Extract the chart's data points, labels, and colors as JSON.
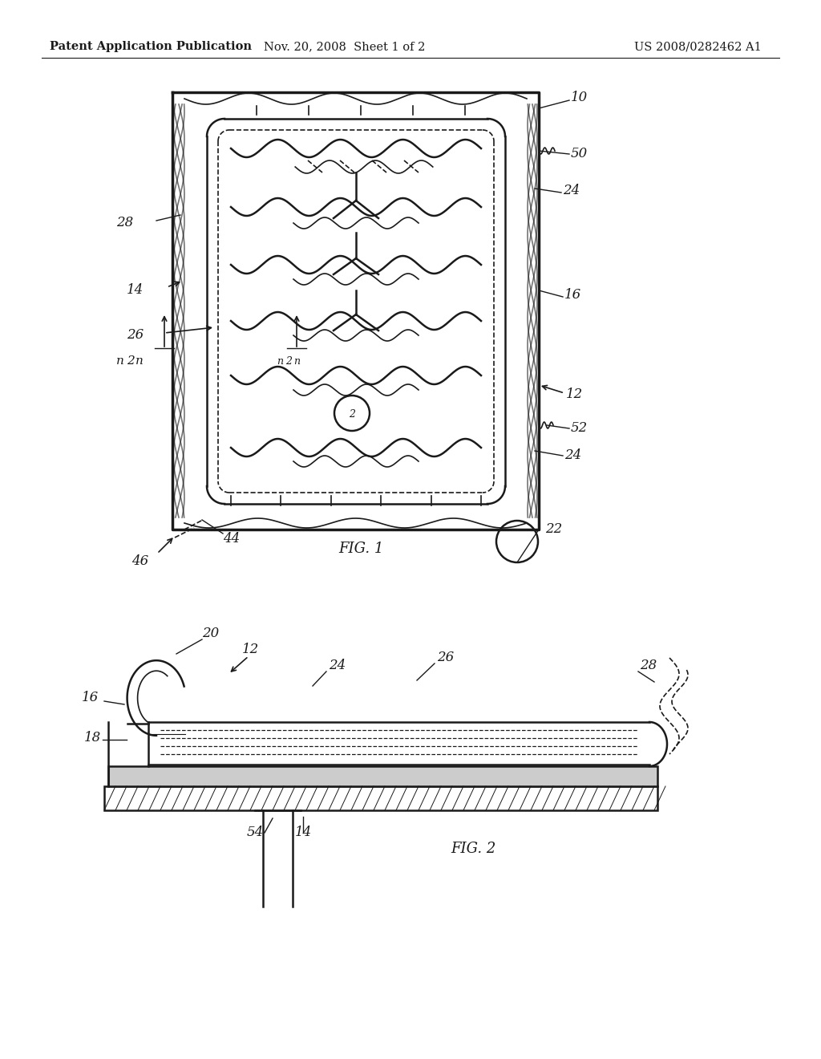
{
  "bg_color": "#ffffff",
  "line_color": "#1a1a1a",
  "header_bold": "Patent Application Publication",
  "header_date": "Nov. 20, 2008  Sheet 1 of 2",
  "header_patent": "US 2008/0282462 A1"
}
